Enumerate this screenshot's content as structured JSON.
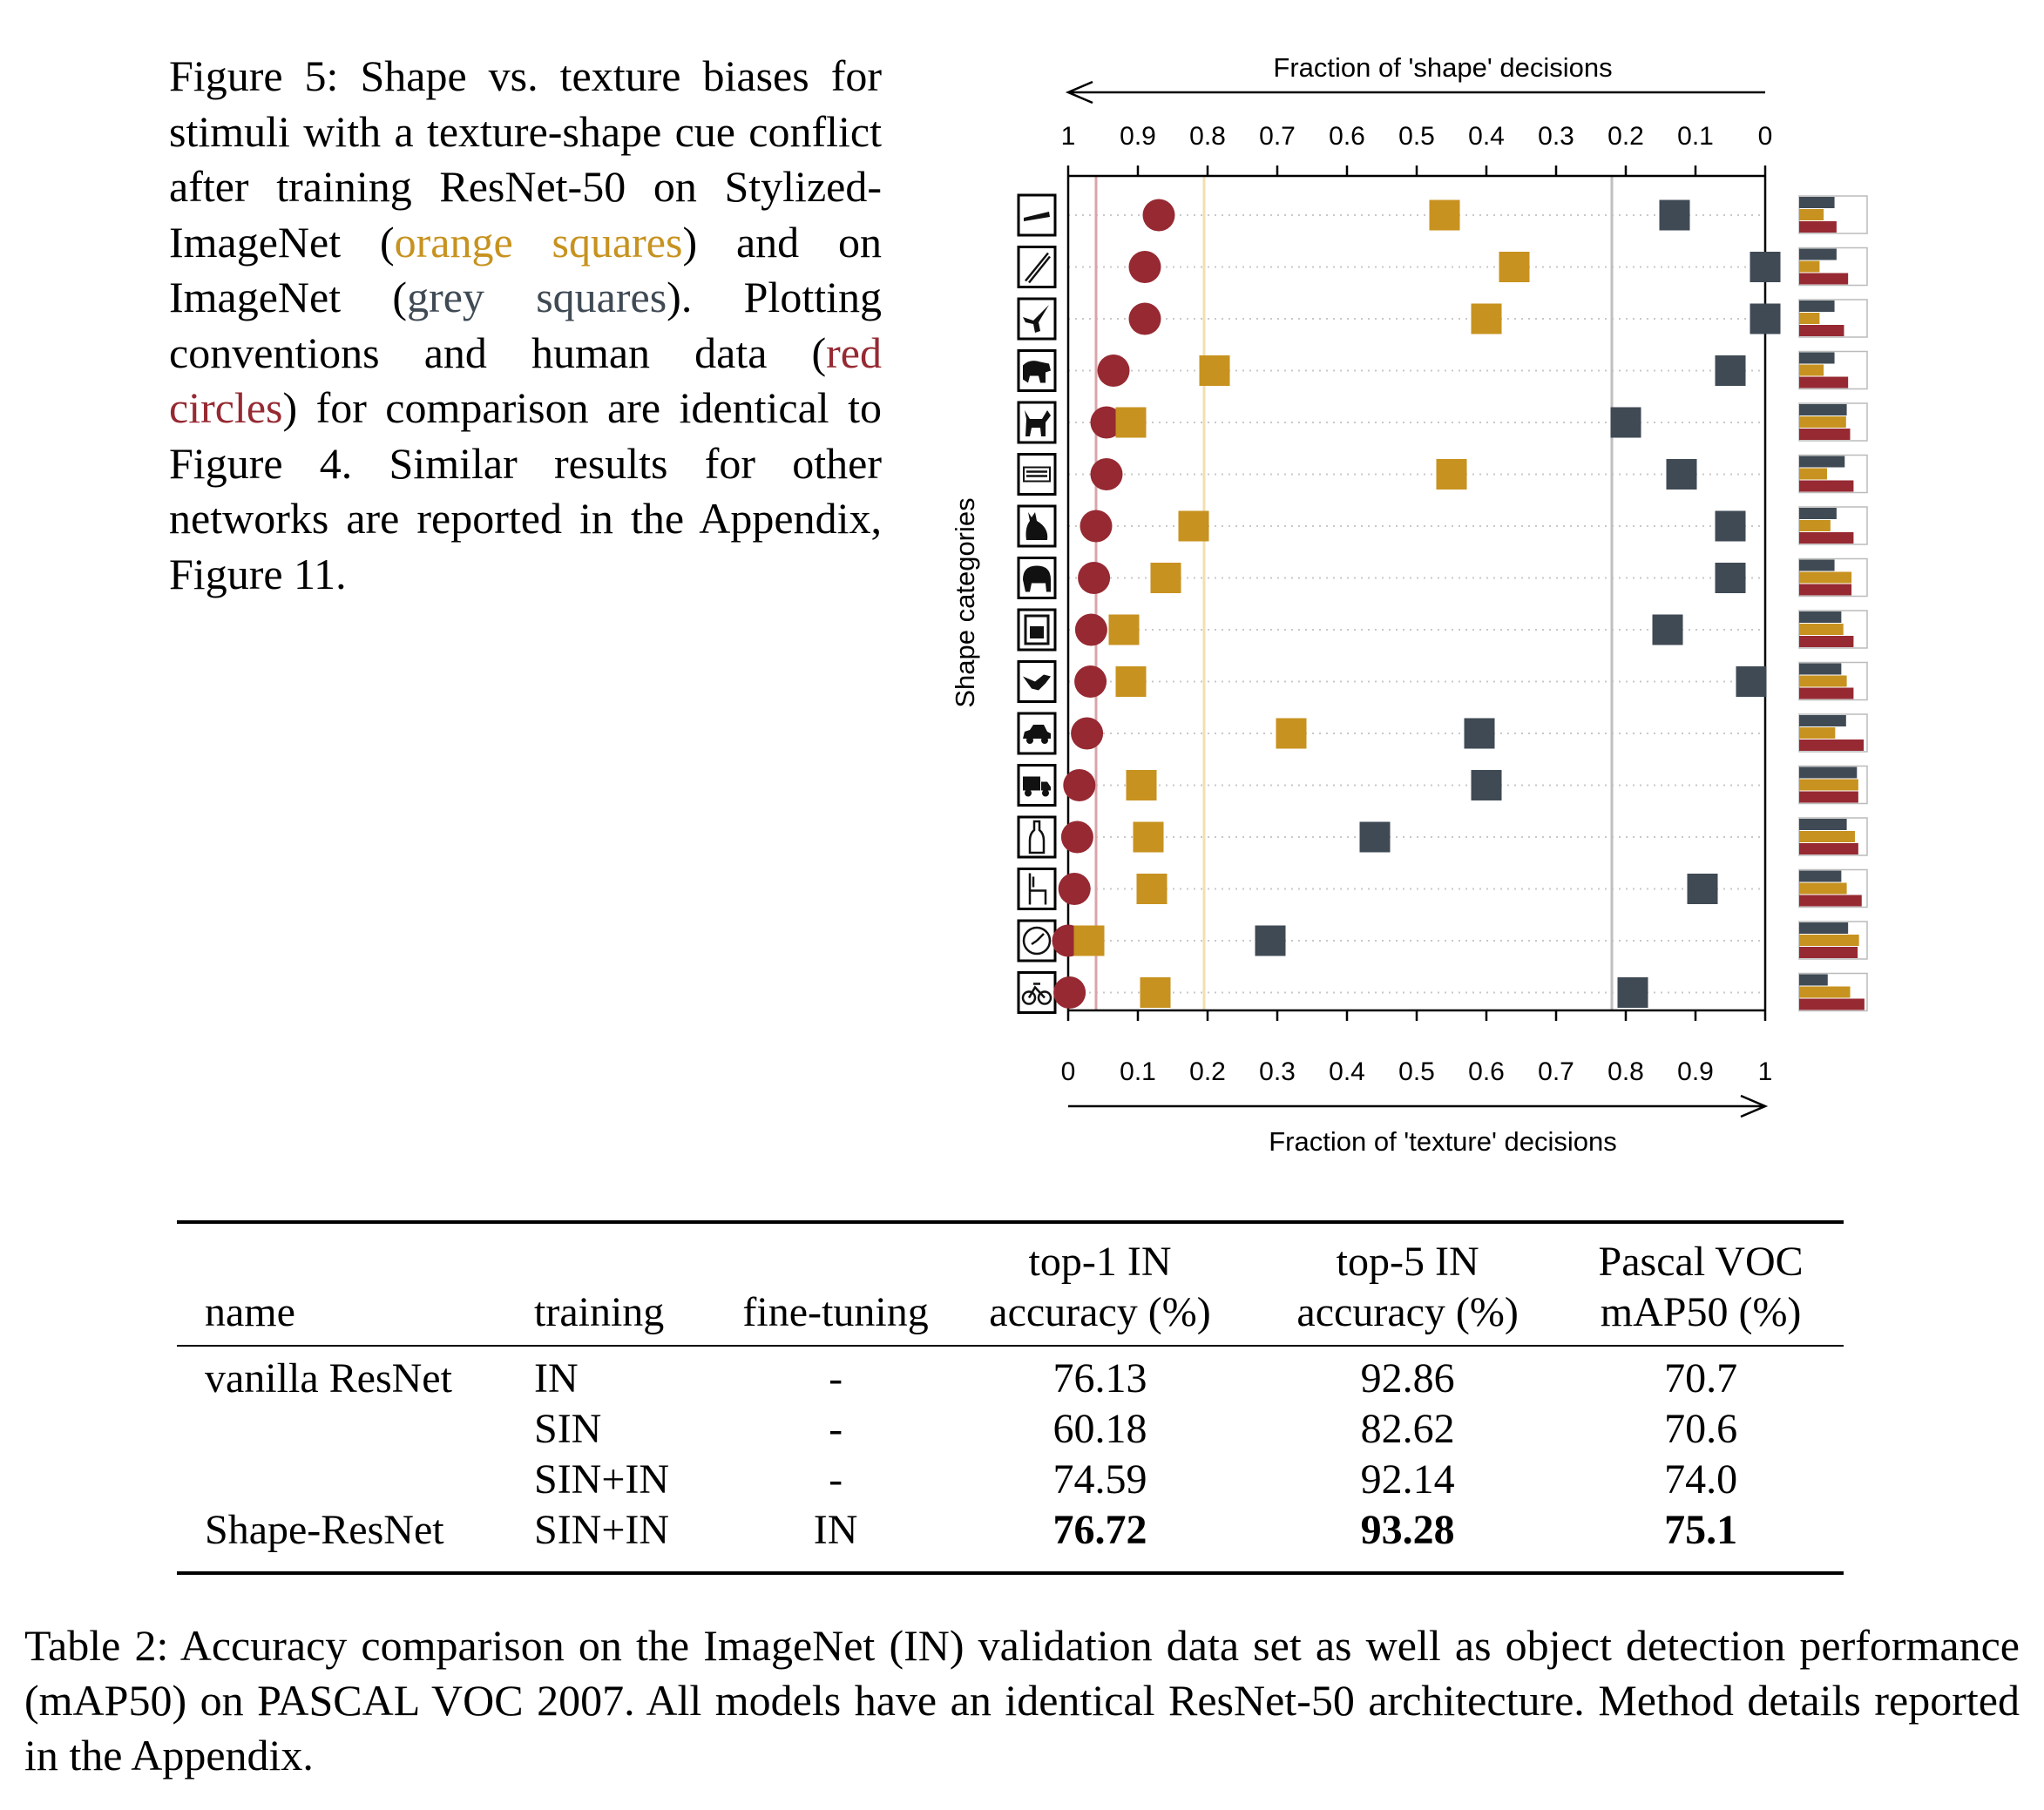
{
  "figure_caption": {
    "lead": "Figure 5: Shape vs. texture biases for stimuli with a texture-shape cue conflict after training ResNet-50 on Stylized-ImageNet (",
    "orange_text": "orange squares",
    "mid1": ") and on ImageNet (",
    "grey_text": "grey squares",
    "mid2": "). Plotting conventions and human data (",
    "red_text": "red circles",
    "tail": ") for comparison are identical to Figure 4. Similar results for other networks are reported in the Appendix, Figure 11."
  },
  "colors": {
    "human": "#962932",
    "sin": "#c7921f",
    "in": "#3f4a54",
    "human_mean_line": "#d9a5a9",
    "sin_mean_line": "#f2dfae",
    "in_mean_line": "#bfbfbf"
  },
  "chart_data": {
    "type": "scatter",
    "top_axis_label": "Fraction of 'shape' decisions",
    "bottom_axis_label": "Fraction of 'texture' decisions",
    "ylabel": "Shape categories",
    "top_ticks": [
      "1",
      "0.9",
      "0.8",
      "0.7",
      "0.6",
      "0.5",
      "0.4",
      "0.3",
      "0.2",
      "0.1",
      "0"
    ],
    "bottom_ticks": [
      "0",
      "0.1",
      "0.2",
      "0.3",
      "0.4",
      "0.5",
      "0.6",
      "0.7",
      "0.8",
      "0.9",
      "1"
    ],
    "xlim": [
      0,
      1
    ],
    "categories": [
      "knife",
      "pen",
      "airplane",
      "bear",
      "dog",
      "keyboard",
      "cat",
      "elephant",
      "oven",
      "bird",
      "car",
      "truck",
      "bottle",
      "chair",
      "clock",
      "bicycle"
    ],
    "category_icons": [
      "knife-icon",
      "pen-icon",
      "airplane-icon",
      "bear-icon",
      "dog-icon",
      "keyboard-icon",
      "cat-icon",
      "elephant-icon",
      "oven-icon",
      "bird-icon",
      "car-icon",
      "truck-icon",
      "bottle-icon",
      "chair-icon",
      "clock-icon",
      "bicycle-icon"
    ],
    "texture_fraction": {
      "human": [
        0.13,
        0.11,
        0.11,
        0.065,
        0.055,
        0.055,
        0.04,
        0.037,
        0.033,
        0.032,
        0.027,
        0.016,
        0.013,
        0.009,
        0.0,
        0.002
      ],
      "sin": [
        0.54,
        0.64,
        0.6,
        0.21,
        0.09,
        0.55,
        0.18,
        0.14,
        0.08,
        0.09,
        0.32,
        0.105,
        0.115,
        0.12,
        0.03,
        0.125
      ],
      "in": [
        0.87,
        1.0,
        1.0,
        0.95,
        0.8,
        0.88,
        0.95,
        0.95,
        0.86,
        0.98,
        0.59,
        0.6,
        0.44,
        0.91,
        0.29,
        0.81
      ]
    },
    "mean_lines_texture_fraction": {
      "human": 0.04,
      "sin": 0.195,
      "in": 0.78
    },
    "side_bar_fractions": {
      "in": [
        0.52,
        0.55,
        0.52,
        0.52,
        0.7,
        0.67,
        0.55,
        0.52,
        0.62,
        0.62,
        0.69,
        0.85,
        0.7,
        0.62,
        0.72,
        0.42
      ],
      "sin": [
        0.36,
        0.3,
        0.3,
        0.36,
        0.69,
        0.41,
        0.46,
        0.77,
        0.65,
        0.7,
        0.53,
        0.87,
        0.82,
        0.7,
        0.88,
        0.75
      ],
      "human": [
        0.55,
        0.72,
        0.66,
        0.72,
        0.75,
        0.8,
        0.8,
        0.77,
        0.8,
        0.8,
        0.95,
        0.87,
        0.87,
        0.92,
        0.86,
        0.96
      ]
    }
  },
  "table": {
    "headers": {
      "name": "name",
      "training": "training",
      "fine_tuning": "fine-tuning",
      "top1_line1": "top-1 IN",
      "top1_line2": "accuracy (%)",
      "top5_line1": "top-5 IN",
      "top5_line2": "accuracy (%)",
      "voc_line1": "Pascal VOC",
      "voc_line2": "mAP50 (%)"
    },
    "rows": [
      {
        "name": "vanilla ResNet",
        "training": "IN",
        "fine_tuning": "-",
        "top1": "76.13",
        "top5": "92.86",
        "voc": "70.7"
      },
      {
        "name": "",
        "training": "SIN",
        "fine_tuning": "-",
        "top1": "60.18",
        "top5": "82.62",
        "voc": "70.6"
      },
      {
        "name": "",
        "training": "SIN+IN",
        "fine_tuning": "-",
        "top1": "74.59",
        "top5": "92.14",
        "voc": "74.0"
      },
      {
        "name": "Shape-ResNet",
        "training": "SIN+IN",
        "fine_tuning": "IN",
        "top1": "76.72",
        "top5": "93.28",
        "voc": "75.1"
      }
    ]
  },
  "table_caption": "Table 2: Accuracy comparison on the ImageNet (IN) validation data set as well as object detection performance (mAP50) on PASCAL VOC 2007. All models have an identical ResNet-50 architecture. Method details reported in the Appendix."
}
